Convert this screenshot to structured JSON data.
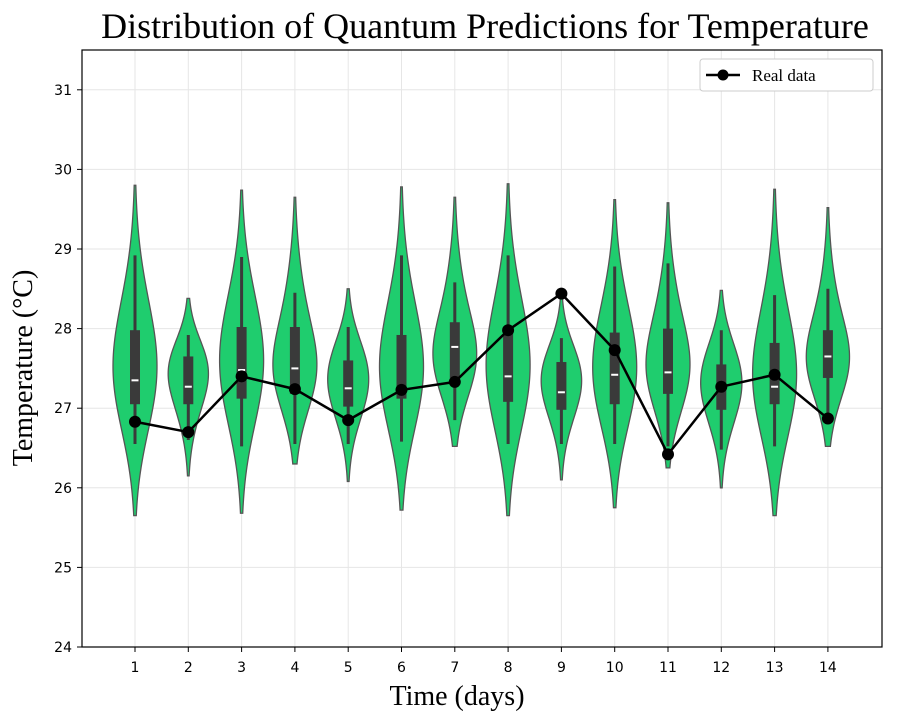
{
  "chart_data": {
    "type": "violin",
    "title": "Distribution of Quantum Predictions for Temperature",
    "xlabel": "Time (days)",
    "ylabel": "Temperature (°C)",
    "ylim": [
      24,
      31.5
    ],
    "yticks": [
      24,
      25,
      26,
      27,
      28,
      29,
      30,
      31
    ],
    "categories": [
      "1",
      "2",
      "3",
      "4",
      "5",
      "6",
      "7",
      "8",
      "9",
      "10",
      "11",
      "12",
      "13",
      "14"
    ],
    "grid": true,
    "legend_position": "top-right",
    "colors": {
      "violin_fill": "#1fcd6e",
      "violin_edge": "#555555",
      "box": "#3a3a3a",
      "median": "#ffffff",
      "line": "#000000"
    },
    "distributions": [
      {
        "day": "1",
        "min": 25.65,
        "max": 29.8,
        "q1": 27.05,
        "median": 27.35,
        "q3": 27.98,
        "whisker_low": 26.55,
        "whisker_high": 28.92
      },
      {
        "day": "2",
        "min": 26.15,
        "max": 28.38,
        "q1": 27.05,
        "median": 27.27,
        "q3": 27.65,
        "whisker_low": 26.6,
        "whisker_high": 27.92
      },
      {
        "day": "3",
        "min": 25.68,
        "max": 29.74,
        "q1": 27.12,
        "median": 27.48,
        "q3": 28.02,
        "whisker_low": 26.52,
        "whisker_high": 28.9
      },
      {
        "day": "4",
        "min": 26.3,
        "max": 29.65,
        "q1": 27.18,
        "median": 27.5,
        "q3": 28.02,
        "whisker_low": 26.55,
        "whisker_high": 28.45
      },
      {
        "day": "5",
        "min": 26.08,
        "max": 28.5,
        "q1": 27.02,
        "median": 27.25,
        "q3": 27.6,
        "whisker_low": 26.55,
        "whisker_high": 28.02
      },
      {
        "day": "6",
        "min": 25.72,
        "max": 29.78,
        "q1": 27.12,
        "median": 27.25,
        "q3": 27.92,
        "whisker_low": 26.58,
        "whisker_high": 28.92
      },
      {
        "day": "7",
        "min": 26.52,
        "max": 29.65,
        "q1": 27.38,
        "median": 27.77,
        "q3": 28.08,
        "whisker_low": 26.85,
        "whisker_high": 28.58
      },
      {
        "day": "8",
        "min": 25.65,
        "max": 29.82,
        "q1": 27.08,
        "median": 27.4,
        "q3": 27.98,
        "whisker_low": 26.55,
        "whisker_high": 28.92
      },
      {
        "day": "9",
        "min": 26.1,
        "max": 28.38,
        "q1": 26.98,
        "median": 27.2,
        "q3": 27.58,
        "whisker_low": 26.55,
        "whisker_high": 27.88
      },
      {
        "day": "10",
        "min": 25.75,
        "max": 29.62,
        "q1": 27.05,
        "median": 27.42,
        "q3": 27.95,
        "whisker_low": 26.55,
        "whisker_high": 28.78
      },
      {
        "day": "11",
        "min": 26.25,
        "max": 29.58,
        "q1": 27.18,
        "median": 27.45,
        "q3": 28.0,
        "whisker_low": 26.52,
        "whisker_high": 28.82
      },
      {
        "day": "12",
        "min": 26.0,
        "max": 28.48,
        "q1": 26.98,
        "median": 27.25,
        "q3": 27.55,
        "whisker_low": 26.48,
        "whisker_high": 27.98
      },
      {
        "day": "13",
        "min": 25.65,
        "max": 29.75,
        "q1": 27.05,
        "median": 27.27,
        "q3": 27.82,
        "whisker_low": 26.52,
        "whisker_high": 28.42
      },
      {
        "day": "14",
        "min": 26.52,
        "max": 29.52,
        "q1": 27.38,
        "median": 27.65,
        "q3": 27.98,
        "whisker_low": 26.85,
        "whisker_high": 28.5
      }
    ],
    "series": [
      {
        "name": "Real data",
        "values": [
          26.83,
          26.7,
          27.4,
          27.24,
          26.85,
          27.23,
          27.33,
          27.98,
          28.44,
          27.73,
          26.42,
          27.27,
          27.42,
          26.87
        ]
      }
    ]
  }
}
